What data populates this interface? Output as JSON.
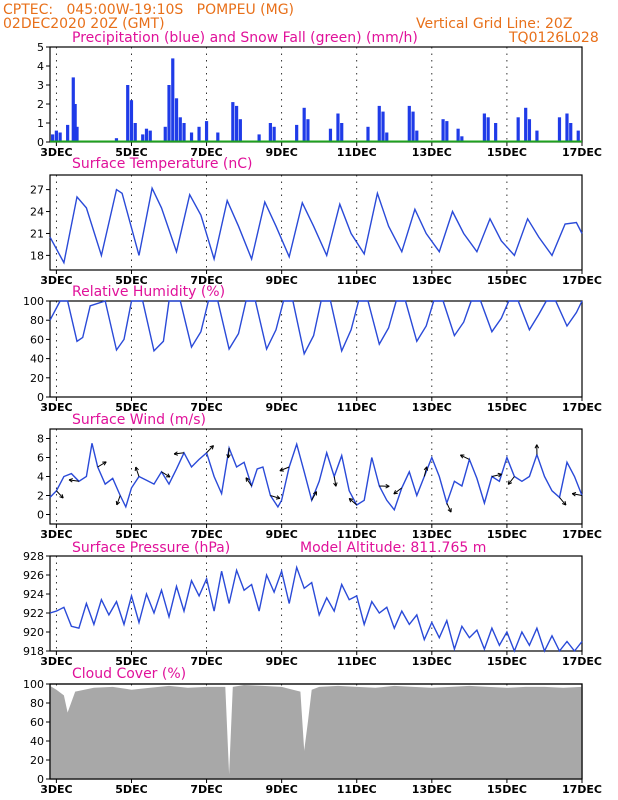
{
  "header": {
    "line1_left": "CPTEC:   045:00W-19:10S   POMPEU (MG)",
    "line2_left": "02DEC2020 20Z (GMT)",
    "line1_right": "Vertical Grid Line: 20Z",
    "line2_right": "TQ0126L028"
  },
  "colors": {
    "header": "#e8701a",
    "title": "#e0119a",
    "precip": "#1f3be8",
    "snow": "#1ea01e",
    "line": "#2a4ad8",
    "cloud": "#a8a8a8",
    "axis": "#000000"
  },
  "panels": {
    "precip": {
      "title": "Precipitation (blue) and Snow Fall (green) (mm/h)"
    },
    "temp": {
      "title": "Surface Temperature (nC)"
    },
    "rh": {
      "title": "Relative Humidity (%)"
    },
    "wind": {
      "title": "Surface Wind (m/s)"
    },
    "pressure": {
      "title": "Surface Pressure (hPa)",
      "extra": "Model Altitude: 811.765 m"
    },
    "cloud": {
      "title": "Cloud Cover (%)"
    }
  },
  "chart_data": [
    {
      "type": "bar",
      "title": "Precipitation (blue) and Snow Fall (green) (mm/h)",
      "x_tick_labels": [
        "3DEC",
        "5DEC",
        "7DEC",
        "9DEC",
        "11DEC",
        "13DEC",
        "15DEC",
        "17DEC"
      ],
      "y_ticks": [
        "0",
        "1",
        "2",
        "3",
        "4",
        "5"
      ],
      "ylim": [
        0,
        5
      ],
      "series": [
        {
          "name": "Precipitation",
          "points": [
            [
              2.9,
              0.4
            ],
            [
              3.0,
              0.6
            ],
            [
              3.1,
              0.5
            ],
            [
              3.3,
              0.9
            ],
            [
              3.45,
              3.4
            ],
            [
              3.5,
              2.0
            ],
            [
              3.55,
              0.8
            ],
            [
              4.6,
              0.2
            ],
            [
              4.9,
              3.0
            ],
            [
              5.0,
              2.2
            ],
            [
              5.1,
              1.0
            ],
            [
              5.3,
              0.4
            ],
            [
              5.4,
              0.7
            ],
            [
              5.5,
              0.6
            ],
            [
              5.9,
              0.8
            ],
            [
              6.0,
              3.0
            ],
            [
              6.1,
              4.4
            ],
            [
              6.2,
              2.3
            ],
            [
              6.3,
              1.3
            ],
            [
              6.4,
              1.0
            ],
            [
              6.6,
              0.5
            ],
            [
              6.8,
              0.8
            ],
            [
              7.0,
              1.1
            ],
            [
              7.3,
              0.5
            ],
            [
              7.7,
              2.1
            ],
            [
              7.8,
              1.9
            ],
            [
              7.9,
              1.2
            ],
            [
              8.4,
              0.4
            ],
            [
              8.7,
              1.0
            ],
            [
              8.8,
              0.8
            ],
            [
              9.4,
              0.9
            ],
            [
              9.6,
              1.8
            ],
            [
              9.7,
              1.2
            ],
            [
              10.3,
              0.7
            ],
            [
              10.5,
              1.5
            ],
            [
              10.6,
              1.0
            ],
            [
              11.3,
              0.8
            ],
            [
              11.6,
              1.9
            ],
            [
              11.7,
              1.6
            ],
            [
              11.8,
              0.5
            ],
            [
              12.4,
              1.9
            ],
            [
              12.5,
              1.6
            ],
            [
              12.6,
              0.6
            ],
            [
              13.3,
              1.2
            ],
            [
              13.4,
              1.1
            ],
            [
              13.7,
              0.7
            ],
            [
              13.8,
              0.3
            ],
            [
              14.4,
              1.5
            ],
            [
              14.5,
              1.3
            ],
            [
              14.7,
              1.0
            ],
            [
              15.3,
              1.3
            ],
            [
              15.5,
              1.8
            ],
            [
              15.6,
              1.2
            ],
            [
              15.8,
              0.6
            ],
            [
              16.4,
              1.3
            ],
            [
              16.6,
              1.5
            ],
            [
              16.7,
              1.0
            ],
            [
              16.9,
              0.6
            ]
          ]
        },
        {
          "name": "Snow Fall",
          "points": [
            [
              2.83,
              0
            ],
            [
              17.0,
              0
            ]
          ]
        }
      ]
    },
    {
      "type": "line",
      "title": "Surface Temperature (nC)",
      "x_tick_labels": [
        "3DEC",
        "5DEC",
        "7DEC",
        "9DEC",
        "11DEC",
        "13DEC",
        "15DEC",
        "17DEC"
      ],
      "y_ticks": [
        "18",
        "21",
        "24",
        "27"
      ],
      "ylim": [
        16,
        29
      ],
      "x": [
        2.83,
        3.2,
        3.55,
        3.8,
        4.2,
        4.6,
        4.75,
        5.2,
        5.55,
        5.8,
        6.2,
        6.55,
        6.85,
        7.2,
        7.55,
        7.85,
        8.2,
        8.55,
        8.85,
        9.2,
        9.55,
        9.85,
        10.2,
        10.55,
        10.85,
        11.2,
        11.55,
        11.85,
        12.2,
        12.55,
        12.85,
        13.2,
        13.55,
        13.85,
        14.2,
        14.55,
        14.85,
        15.2,
        15.55,
        15.85,
        16.2,
        16.55,
        16.85,
        17.0
      ],
      "values": [
        20.5,
        17.0,
        26.0,
        24.5,
        18.0,
        27.0,
        26.5,
        18.0,
        27.2,
        24.5,
        18.5,
        26.3,
        23.5,
        17.5,
        25.5,
        22.0,
        17.5,
        25.3,
        22.0,
        17.8,
        25.2,
        22.0,
        18.0,
        25.0,
        21.0,
        18.2,
        26.5,
        22.0,
        18.5,
        24.3,
        21.0,
        18.5,
        24.0,
        21.0,
        18.5,
        23.0,
        20.0,
        18.0,
        23.0,
        20.5,
        18.0,
        22.3,
        22.5,
        21.0
      ]
    },
    {
      "type": "line",
      "title": "Relative Humidity (%)",
      "x_tick_labels": [
        "3DEC",
        "5DEC",
        "7DEC",
        "9DEC",
        "11DEC",
        "13DEC",
        "15DEC",
        "17DEC"
      ],
      "y_ticks": [
        "0",
        "20",
        "40",
        "60",
        "80",
        "100"
      ],
      "ylim": [
        0,
        100
      ],
      "x": [
        2.83,
        3.1,
        3.3,
        3.55,
        3.7,
        3.9,
        4.3,
        4.6,
        4.8,
        5.0,
        5.3,
        5.6,
        5.85,
        6.0,
        6.3,
        6.6,
        6.85,
        7.05,
        7.3,
        7.6,
        7.85,
        8.05,
        8.3,
        8.6,
        8.85,
        9.05,
        9.3,
        9.6,
        9.85,
        10.05,
        10.3,
        10.6,
        10.85,
        11.05,
        11.3,
        11.6,
        11.85,
        12.05,
        12.3,
        12.6,
        12.85,
        13.05,
        13.3,
        13.6,
        13.85,
        14.05,
        14.3,
        14.6,
        14.85,
        15.05,
        15.3,
        15.6,
        15.85,
        16.05,
        16.3,
        16.6,
        16.85,
        17.0
      ],
      "values": [
        80,
        100,
        100,
        58,
        62,
        95,
        100,
        49,
        60,
        100,
        100,
        48,
        58,
        100,
        100,
        52,
        68,
        100,
        100,
        50,
        66,
        100,
        100,
        50,
        70,
        100,
        100,
        45,
        64,
        100,
        100,
        48,
        70,
        100,
        100,
        55,
        72,
        100,
        100,
        58,
        74,
        100,
        100,
        64,
        78,
        100,
        100,
        68,
        82,
        100,
        100,
        70,
        86,
        100,
        100,
        74,
        88,
        100
      ]
    },
    {
      "type": "line",
      "title": "Surface Wind (m/s)",
      "x_tick_labels": [
        "3DEC",
        "5DEC",
        "7DEC",
        "9DEC",
        "11DEC",
        "13DEC",
        "15DEC",
        "17DEC"
      ],
      "y_ticks": [
        "0",
        "2",
        "4",
        "6",
        "8"
      ],
      "ylim": [
        -1,
        9
      ],
      "x": [
        2.83,
        3.0,
        3.2,
        3.4,
        3.6,
        3.8,
        3.95,
        4.1,
        4.3,
        4.5,
        4.7,
        4.85,
        5.0,
        5.2,
        5.4,
        5.6,
        5.8,
        6.0,
        6.2,
        6.4,
        6.6,
        6.8,
        7.0,
        7.2,
        7.4,
        7.6,
        7.8,
        8.0,
        8.2,
        8.35,
        8.5,
        8.7,
        8.9,
        9.0,
        9.2,
        9.4,
        9.6,
        9.8,
        10.0,
        10.2,
        10.4,
        10.6,
        10.8,
        11.0,
        11.2,
        11.4,
        11.6,
        11.8,
        12.0,
        12.2,
        12.4,
        12.6,
        12.8,
        13.0,
        13.2,
        13.4,
        13.6,
        13.8,
        14.0,
        14.2,
        14.4,
        14.6,
        14.8,
        15.0,
        15.2,
        15.4,
        15.6,
        15.8,
        16.0,
        16.2,
        16.4,
        16.6,
        16.8,
        17.0
      ],
      "values": [
        1.8,
        2.5,
        4.0,
        4.3,
        3.5,
        4.0,
        7.5,
        5.0,
        3.2,
        3.8,
        2.0,
        0.8,
        2.8,
        4.0,
        3.6,
        3.2,
        4.5,
        3.2,
        4.8,
        6.5,
        5.0,
        5.8,
        6.5,
        4.0,
        2.2,
        7.0,
        5.0,
        5.5,
        3.0,
        4.8,
        5.0,
        2.0,
        0.8,
        1.5,
        5.0,
        7.4,
        4.5,
        1.5,
        3.5,
        6.5,
        4.0,
        6.2,
        2.5,
        1.0,
        1.5,
        6.0,
        3.0,
        1.5,
        0.5,
        2.8,
        4.5,
        2.0,
        4.0,
        6.0,
        4.0,
        1.2,
        3.5,
        3.0,
        5.8,
        3.8,
        1.2,
        4.0,
        3.5,
        6.0,
        4.0,
        3.5,
        4.0,
        6.3,
        4.0,
        2.5,
        1.8,
        5.5,
        4.0,
        2.0
      ]
    },
    {
      "type": "line",
      "title": "Surface Pressure (hPa)",
      "annotations": [
        "Model Altitude: 811.765 m"
      ],
      "x_tick_labels": [
        "3DEC",
        "5DEC",
        "7DEC",
        "9DEC",
        "11DEC",
        "13DEC",
        "15DEC",
        "17DEC"
      ],
      "y_ticks": [
        "918",
        "920",
        "922",
        "924",
        "926",
        "928"
      ],
      "ylim": [
        918,
        928
      ],
      "x": [
        2.83,
        3.0,
        3.2,
        3.4,
        3.6,
        3.8,
        4.0,
        4.2,
        4.4,
        4.6,
        4.8,
        5.0,
        5.2,
        5.4,
        5.6,
        5.8,
        6.0,
        6.2,
        6.4,
        6.6,
        6.8,
        7.0,
        7.2,
        7.4,
        7.6,
        7.8,
        8.0,
        8.2,
        8.4,
        8.6,
        8.8,
        9.0,
        9.2,
        9.4,
        9.6,
        9.8,
        10.0,
        10.2,
        10.4,
        10.6,
        10.8,
        11.0,
        11.2,
        11.4,
        11.6,
        11.8,
        12.0,
        12.2,
        12.4,
        12.6,
        12.8,
        13.0,
        13.2,
        13.4,
        13.6,
        13.8,
        14.0,
        14.2,
        14.4,
        14.6,
        14.8,
        15.0,
        15.2,
        15.4,
        15.6,
        15.8,
        16.0,
        16.2,
        16.4,
        16.6,
        16.8,
        17.0
      ],
      "values": [
        922.0,
        922.2,
        922.6,
        920.6,
        920.4,
        923.0,
        920.8,
        923.4,
        921.8,
        923.2,
        920.8,
        923.8,
        921.0,
        924.0,
        922.0,
        924.4,
        921.6,
        924.8,
        922.2,
        925.4,
        923.8,
        925.6,
        922.2,
        926.4,
        923.0,
        926.5,
        924.4,
        925.0,
        922.2,
        926.0,
        924.2,
        926.4,
        923.0,
        926.8,
        924.6,
        925.2,
        921.8,
        923.6,
        922.2,
        925.0,
        923.4,
        923.8,
        920.8,
        923.2,
        922.0,
        922.6,
        920.4,
        922.2,
        920.8,
        921.8,
        919.2,
        921.0,
        919.4,
        921.2,
        918.2,
        920.6,
        919.4,
        920.2,
        918.2,
        920.4,
        918.6,
        920.0,
        918.0,
        920.0,
        918.6,
        920.4,
        918.0,
        919.6,
        918.0,
        919.0,
        918.0,
        919.0
      ]
    },
    {
      "type": "area",
      "title": "Cloud Cover (%)",
      "x_tick_labels": [
        "3DEC",
        "5DEC",
        "7DEC",
        "9DEC",
        "11DEC",
        "13DEC",
        "15DEC",
        "17DEC"
      ],
      "y_ticks": [
        "0",
        "20",
        "40",
        "60",
        "80",
        "100"
      ],
      "ylim": [
        0,
        100
      ],
      "x": [
        2.83,
        3.0,
        3.2,
        3.3,
        3.5,
        4.0,
        4.5,
        5.0,
        5.5,
        6.0,
        6.5,
        7.0,
        7.5,
        7.6,
        7.7,
        8.0,
        8.5,
        9.0,
        9.5,
        9.6,
        9.7,
        9.8,
        10.0,
        10.5,
        11.0,
        11.5,
        12.0,
        12.5,
        13.0,
        13.5,
        14.0,
        14.5,
        15.0,
        15.5,
        16.0,
        16.5,
        17.0
      ],
      "values": [
        98,
        94,
        88,
        70,
        92,
        96,
        97,
        94,
        96,
        98,
        96,
        97,
        97,
        5,
        97,
        99,
        98,
        97,
        92,
        30,
        60,
        94,
        97,
        98,
        97,
        96,
        98,
        97,
        96,
        97,
        98,
        97,
        96,
        97,
        97,
        96,
        97
      ]
    }
  ]
}
